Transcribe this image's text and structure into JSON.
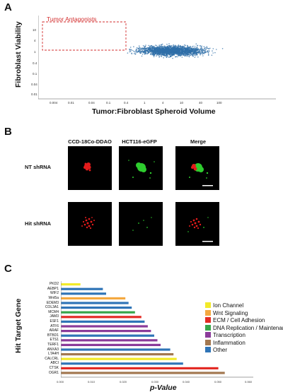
{
  "panels": {
    "a": {
      "letter": "A",
      "xlabel": "Tumor:Fibroblast Spheroid Volume",
      "ylabel": "Fibroblast Viability",
      "box_label": "Tumor Antagonists",
      "xticks": [
        "0.004",
        "0.01",
        "0.04",
        "0.1",
        "0.4",
        "1",
        "4",
        "10",
        "40",
        "100"
      ],
      "yticks": [
        "10",
        "4",
        "1",
        "0.4",
        "0.1",
        "0.04",
        "0.01"
      ],
      "point_color": "#2f6fa8",
      "box_color": "#d32f2f"
    },
    "b": {
      "letter": "B",
      "columns": [
        "CCD-18Co-DDAO",
        "HCT116-eGFP",
        "Merge"
      ],
      "rows": [
        "NT shRNA",
        "Hit shRNA"
      ]
    },
    "c": {
      "letter": "C",
      "xlabel": "p-Value",
      "ylabel": "Hit Target Gene",
      "xticks": [
        "0.000",
        "0.010",
        "0.020",
        "0.030",
        "0.040",
        "0.050",
        "0.060"
      ]
    }
  },
  "chart_data": {
    "type": "bar",
    "orientation": "horizontal",
    "xlabel": "p-Value",
    "ylabel": "Hit Target Gene",
    "xlim": [
      0,
      0.06
    ],
    "categories": [
      "PKD2",
      "AEBP1",
      "WIF2",
      "Wnt5a",
      "EDEM3",
      "COL3A1",
      "MCM4",
      "JAM3",
      "ESF1",
      "ATF6",
      "ARAF",
      "BTBD1",
      "ETS1",
      "TERF1",
      "ANXA3",
      "LTA4H",
      "CALCRL",
      "ABCI",
      "CTSK",
      "OGR1"
    ],
    "values": [
      0.006,
      0.013,
      0.014,
      0.02,
      0.021,
      0.022,
      0.023,
      0.025,
      0.026,
      0.027,
      0.028,
      0.029,
      0.03,
      0.031,
      0.034,
      0.035,
      0.036,
      0.038,
      0.049,
      0.051
    ],
    "category_group": [
      "Ion Channel",
      "Other",
      "Other",
      "Wnt Signaling",
      "Other",
      "Other",
      "DNA Replication / Maintenance",
      "ECM / Cell Adhesion",
      "Other",
      "Transcription",
      "Transcription",
      "Other",
      "Transcription",
      "Transcription",
      "Other",
      "Inflammation",
      "Ion Channel",
      "Other",
      "ECM / Cell Adhesion",
      "Inflammation"
    ],
    "legend": [
      {
        "name": "Ion Channel",
        "color": "#f2ea2a"
      },
      {
        "name": "Wnt Signaling",
        "color": "#f4a940"
      },
      {
        "name": "ECM / Cell Adhesion",
        "color": "#e32b25"
      },
      {
        "name": "DNA Replication / Maintenance",
        "color": "#37a64a"
      },
      {
        "name": "Transcription",
        "color": "#8b3b9a"
      },
      {
        "name": "Inflammation",
        "color": "#a2774f"
      },
      {
        "name": "Other",
        "color": "#2f74b7"
      }
    ],
    "legend_position": "right"
  }
}
